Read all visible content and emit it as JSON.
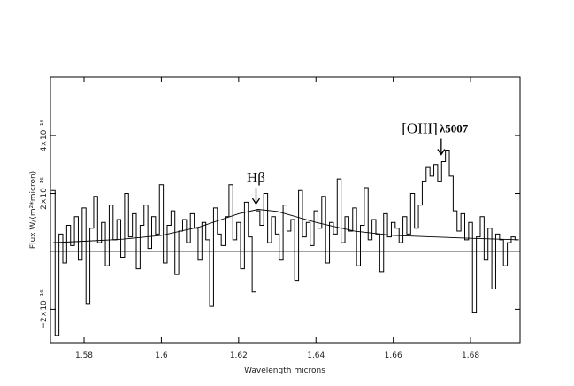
{
  "chart_data": {
    "type": "line",
    "xlabel": "Wavelength   microns",
    "ylabel": "Flux   W/(m²*micron)",
    "xlim": [
      1.5713,
      1.6928
    ],
    "ylim": [
      -3.15e-16,
      6.02e-16
    ],
    "xticks": [
      1.58,
      1.6,
      1.62,
      1.64,
      1.66,
      1.68
    ],
    "yticks": [
      {
        "value": -2e-16,
        "label": "−2×10⁻¹⁶"
      },
      {
        "value": 2e-16,
        "label": "2×10⁻¹⁶"
      },
      {
        "value": 4e-16,
        "label": "4×10⁻¹⁶"
      }
    ],
    "annotations": [
      {
        "text": "Hβ",
        "x": 1.6245
      },
      {
        "text": "[OIII]",
        "sub": "λ5007",
        "x": 1.6724
      }
    ],
    "series": [
      {
        "color": "#000000",
        "step": true,
        "x": [
          1.572,
          1.573,
          1.574,
          1.575,
          1.576,
          1.577,
          1.578,
          1.579,
          1.58,
          1.581,
          1.582,
          1.583,
          1.584,
          1.585,
          1.586,
          1.587,
          1.588,
          1.589,
          1.59,
          1.591,
          1.592,
          1.593,
          1.594,
          1.595,
          1.596,
          1.597,
          1.598,
          1.599,
          1.6,
          1.601,
          1.602,
          1.603,
          1.604,
          1.605,
          1.606,
          1.607,
          1.608,
          1.609,
          1.61,
          1.611,
          1.612,
          1.613,
          1.614,
          1.615,
          1.616,
          1.617,
          1.618,
          1.619,
          1.62,
          1.621,
          1.622,
          1.623,
          1.624,
          1.625,
          1.626,
          1.627,
          1.628,
          1.629,
          1.63,
          1.631,
          1.632,
          1.633,
          1.634,
          1.635,
          1.636,
          1.637,
          1.638,
          1.639,
          1.64,
          1.641,
          1.642,
          1.643,
          1.644,
          1.645,
          1.646,
          1.647,
          1.648,
          1.649,
          1.65,
          1.651,
          1.652,
          1.653,
          1.654,
          1.655,
          1.656,
          1.657,
          1.658,
          1.659,
          1.66,
          1.661,
          1.662,
          1.663,
          1.664,
          1.665,
          1.666,
          1.667,
          1.668,
          1.669,
          1.67,
          1.671,
          1.672,
          1.673,
          1.674,
          1.675,
          1.676,
          1.677,
          1.678,
          1.679,
          1.68,
          1.681,
          1.682,
          1.683,
          1.684,
          1.685,
          1.686,
          1.687,
          1.688,
          1.689,
          1.69,
          1.691,
          1.692
        ],
        "values": [
          2.1e-16,
          -2.9e-16,
          6e-17,
          -4e-17,
          9e-17,
          2e-17,
          1.2e-16,
          -3e-17,
          1.5e-16,
          -1.8e-16,
          8e-17,
          1.9e-16,
          3e-17,
          1e-16,
          -5e-17,
          1.6e-16,
          4e-17,
          1.1e-16,
          -2e-17,
          2e-16,
          5e-17,
          1.3e-16,
          -6e-17,
          9e-17,
          1.6e-16,
          1e-17,
          1.2e-16,
          6e-17,
          2.3e-16,
          -4e-17,
          9e-17,
          1.4e-16,
          -8e-17,
          7e-17,
          1.1e-16,
          3e-17,
          1.3e-16,
          8e-17,
          -3e-17,
          1e-16,
          4e-17,
          -1.9e-16,
          1.5e-16,
          6e-17,
          2e-17,
          1.2e-16,
          2.3e-16,
          4e-17,
          1e-16,
          -6e-17,
          1.7e-16,
          5e-17,
          -1.4e-16,
          1.4e-16,
          9e-17,
          2e-16,
          3e-17,
          1.2e-16,
          6e-17,
          -3e-17,
          1.6e-16,
          7e-17,
          1.1e-16,
          -1e-16,
          2.1e-16,
          5e-17,
          1e-16,
          2e-17,
          1.4e-16,
          8e-17,
          1.9e-16,
          -4e-17,
          1e-16,
          6e-17,
          2.5e-16,
          3e-17,
          1.2e-16,
          7e-17,
          1.5e-16,
          -5e-17,
          9e-17,
          2.2e-16,
          4e-17,
          1.1e-16,
          6e-17,
          -7e-17,
          1.3e-16,
          5e-17,
          1e-16,
          8e-17,
          3e-17,
          1.2e-16,
          6e-17,
          2e-16,
          8e-17,
          1.6e-16,
          2.4e-16,
          2.9e-16,
          2.6e-16,
          3e-16,
          2.4e-16,
          3.1e-16,
          3.5e-16,
          2.6e-16,
          1.4e-16,
          7e-17,
          1.3e-16,
          4e-17,
          1e-16,
          -2.1e-16,
          5e-17,
          1.2e-16,
          -3e-17,
          8e-17,
          -1.3e-16,
          6e-17,
          4e-17,
          -5e-17,
          3e-17,
          5e-17,
          4e-17
        ]
      },
      {
        "color": "#000000",
        "step": false,
        "x": [
          1.572,
          1.58,
          1.59,
          1.6,
          1.61,
          1.62,
          1.625,
          1.63,
          1.64,
          1.65,
          1.66,
          1.67,
          1.68,
          1.692
        ],
        "values": [
          3e-17,
          3.5e-17,
          4.2e-17,
          5.5e-17,
          8.5e-17,
          1.3e-16,
          1.45e-16,
          1.38e-16,
          1e-16,
          7e-17,
          5.5e-17,
          5e-17,
          4.5e-17,
          4e-17
        ]
      }
    ]
  }
}
